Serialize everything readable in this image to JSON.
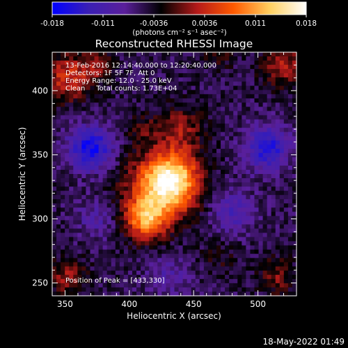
{
  "colors": {
    "background": "#000000",
    "foreground": "#ffffff",
    "colormap": [
      "#0000ff",
      "#3a1fb4",
      "#5a1f9a",
      "#000000",
      "#b51a1a",
      "#ff5a00",
      "#ffd060",
      "#ffffff"
    ]
  },
  "colorbar": {
    "ticks": [
      "-0.018",
      "-0.011",
      "-0.0036",
      "0.0036",
      "0.011",
      "0.018"
    ],
    "unit_label": "(photons cm⁻² s⁻¹ asec⁻²)"
  },
  "plot": {
    "title": "Reconstructed RHESSI Image",
    "info_lines": [
      "13-Feb-2016 12:14:40.000 to 12:20:40.000",
      "Detectors: 1F 5F 7F, Att 0",
      "Energy Range: 12.0 - 25.0 keV",
      "Clean     Total counts: 1.73E+04"
    ],
    "peak_text": "Position of Peak = [433,330]",
    "footer_date": "18-May-2022 01:49"
  },
  "chart_data": {
    "type": "heatmap",
    "title": "Reconstructed RHESSI Image",
    "xlabel": "Heliocentric X (arcsec)",
    "ylabel": "Heliocentric Y (arcsec)",
    "xlim": [
      340,
      530
    ],
    "ylim": [
      240,
      430
    ],
    "xticks": [
      350,
      400,
      450,
      500
    ],
    "yticks": [
      250,
      300,
      350,
      400
    ],
    "color_range": [
      -0.018,
      0.018
    ],
    "peak_position": [
      433,
      330
    ],
    "sources": [
      {
        "x": 433,
        "y": 330,
        "peak": 0.018,
        "width": 15
      },
      {
        "x": 413,
        "y": 300,
        "peak": 0.0135,
        "width": 11
      },
      {
        "x": 420,
        "y": 322,
        "peak": 0.008,
        "width": 20
      },
      {
        "x": 440,
        "y": 370,
        "peak": 0.006,
        "width": 13
      },
      {
        "x": 410,
        "y": 370,
        "peak": 0.0035,
        "width": 9
      },
      {
        "x": 352,
        "y": 410,
        "peak": 0.009,
        "width": 13
      },
      {
        "x": 375,
        "y": 420,
        "peak": 0.005,
        "width": 9
      },
      {
        "x": 520,
        "y": 420,
        "peak": 0.007,
        "width": 12
      },
      {
        "x": 470,
        "y": 428,
        "peak": 0.0035,
        "width": 8
      },
      {
        "x": 352,
        "y": 255,
        "peak": 0.0065,
        "width": 10
      },
      {
        "x": 515,
        "y": 255,
        "peak": 0.0055,
        "width": 10
      },
      {
        "x": 470,
        "y": 270,
        "peak": 0.0025,
        "width": 10
      },
      {
        "x": 370,
        "y": 355,
        "peak": -0.012,
        "width": 12
      },
      {
        "x": 507,
        "y": 355,
        "peak": -0.01,
        "width": 12
      },
      {
        "x": 480,
        "y": 305,
        "peak": -0.006,
        "width": 12
      },
      {
        "x": 375,
        "y": 300,
        "peak": -0.0045,
        "width": 11
      },
      {
        "x": 430,
        "y": 255,
        "peak": -0.004,
        "width": 12
      }
    ],
    "background_level": -0.005,
    "noise_amplitude": 0.0022
  }
}
